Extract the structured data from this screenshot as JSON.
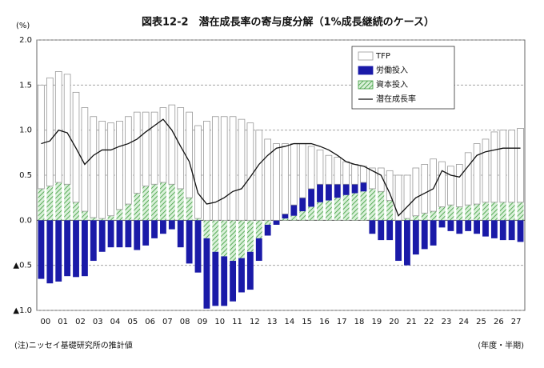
{
  "chart_data": {
    "type": "bar",
    "stacked": true,
    "title": "図表12-2　潜在成長率の寄与度分解（1%成長継続のケース）",
    "y_unit": "(%)",
    "x_unit": "(年度・半期)",
    "note": "(注)ニッセイ基礎研究所の推計値",
    "categories": [
      "00",
      null,
      "01",
      null,
      "02",
      null,
      "03",
      null,
      "04",
      null,
      "05",
      null,
      "06",
      null,
      "07",
      null,
      "08",
      null,
      "09",
      null,
      "10",
      null,
      "11",
      null,
      "12",
      null,
      "13",
      null,
      "14",
      null,
      "15",
      null,
      "16",
      null,
      "17",
      null,
      "18",
      null,
      "19",
      null,
      "20",
      null,
      "21",
      null,
      "22",
      null,
      "23",
      null,
      "24",
      null,
      "25",
      null,
      "26",
      null,
      "27",
      null
    ],
    "ylim": [
      -1.0,
      2.0
    ],
    "yticks": [
      {
        "value": -1.0,
        "label": "▲1.0"
      },
      {
        "value": -0.5,
        "label": "▲0.5"
      },
      {
        "value": 0,
        "label": "0.0"
      },
      {
        "value": 0.5,
        "label": "0.5"
      },
      {
        "value": 1.0,
        "label": "1.0"
      },
      {
        "value": 1.5,
        "label": "1.5"
      },
      {
        "value": 2.0,
        "label": "2.0"
      }
    ],
    "grid": true,
    "legend": "top-right",
    "series": [
      {
        "name": "TFP",
        "color": "#ffffff",
        "stroke": "#999999",
        "values": [
          1.15,
          1.2,
          1.23,
          1.22,
          1.22,
          1.15,
          1.12,
          1.08,
          1.03,
          0.98,
          0.97,
          0.9,
          0.82,
          0.8,
          0.83,
          0.88,
          0.9,
          0.95,
          1.03,
          1.1,
          1.15,
          1.15,
          1.15,
          1.12,
          1.08,
          1.0,
          0.9,
          0.85,
          0.78,
          0.68,
          0.6,
          0.47,
          0.38,
          0.32,
          0.3,
          0.25,
          0.22,
          0.18,
          0.23,
          0.26,
          0.33,
          0.5,
          0.48,
          0.53,
          0.54,
          0.58,
          0.5,
          0.43,
          0.47,
          0.58,
          0.67,
          0.7,
          0.78,
          0.8,
          0.8,
          0.82
        ]
      },
      {
        "name": "労働投入",
        "color": "#1a1aa8",
        "values": [
          -0.65,
          -0.7,
          -0.68,
          -0.62,
          -0.63,
          -0.62,
          -0.45,
          -0.35,
          -0.3,
          -0.3,
          -0.3,
          -0.33,
          -0.28,
          -0.2,
          -0.15,
          -0.1,
          -0.3,
          -0.48,
          -0.58,
          -0.78,
          -0.6,
          -0.55,
          -0.45,
          -0.38,
          -0.42,
          -0.25,
          -0.12,
          -0.05,
          0.05,
          0.12,
          0.15,
          0.2,
          0.2,
          0.18,
          0.15,
          0.12,
          0.1,
          0.1,
          -0.15,
          -0.22,
          -0.22,
          -0.45,
          -0.5,
          -0.38,
          -0.32,
          -0.28,
          -0.08,
          -0.12,
          -0.15,
          -0.12,
          -0.15,
          -0.18,
          -0.2,
          -0.22,
          -0.22,
          -0.24
        ]
      },
      {
        "name": "資本投入",
        "color": "#3a9a3a",
        "pattern": "hatch",
        "values": [
          0.35,
          0.38,
          0.42,
          0.4,
          0.2,
          0.1,
          0.03,
          0.02,
          0.05,
          0.12,
          0.18,
          0.3,
          0.38,
          0.4,
          0.42,
          0.4,
          0.35,
          0.25,
          0.02,
          -0.2,
          -0.35,
          -0.4,
          -0.45,
          -0.42,
          -0.35,
          -0.2,
          -0.05,
          0,
          0.02,
          0.05,
          0.1,
          0.15,
          0.2,
          0.22,
          0.25,
          0.28,
          0.3,
          0.32,
          0.35,
          0.32,
          0.22,
          0,
          0.02,
          0.05,
          0.08,
          0.1,
          0.15,
          0.17,
          0.15,
          0.17,
          0.18,
          0.2,
          0.2,
          0.2,
          0.2,
          0.2
        ]
      },
      {
        "name": "潜在成長率",
        "type": "line",
        "color": "#111111",
        "values": [
          0.85,
          0.88,
          1.0,
          0.97,
          0.8,
          0.62,
          0.72,
          0.78,
          0.78,
          0.82,
          0.85,
          0.9,
          0.98,
          1.05,
          1.12,
          1.0,
          0.82,
          0.65,
          0.3,
          0.18,
          0.2,
          0.25,
          0.32,
          0.35,
          0.48,
          0.62,
          0.72,
          0.8,
          0.82,
          0.85,
          0.85,
          0.85,
          0.82,
          0.78,
          0.72,
          0.65,
          0.62,
          0.6,
          0.55,
          0.5,
          0.3,
          0.05,
          0.15,
          0.25,
          0.3,
          0.35,
          0.55,
          0.5,
          0.48,
          0.6,
          0.72,
          0.76,
          0.78,
          0.8,
          0.8,
          0.8
        ]
      }
    ]
  }
}
